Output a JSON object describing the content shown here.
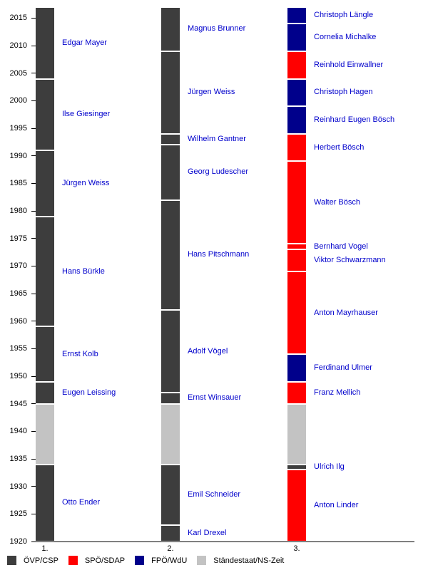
{
  "chart_data": {
    "type": "bar",
    "subtype": "vertical-timeline-succession",
    "title": "",
    "axis": {
      "year_min": 1920,
      "year_max": 2017,
      "tick_years": [
        1920,
        1925,
        1930,
        1935,
        1940,
        1945,
        1950,
        1955,
        1960,
        1965,
        1970,
        1975,
        1980,
        1985,
        1990,
        1995,
        2000,
        2005,
        2010,
        2015
      ],
      "grid": false
    },
    "colors": {
      "ÖVP/CSP": "#3d3d3d",
      "SPÖ/SDAP": "#ff0000",
      "FPÖ/WdU": "#00008b",
      "Ständestaat/NS-Zeit": "#c3c3c3",
      "name_label_text": "#0000cc",
      "axis_text": "#000000"
    },
    "legend": {
      "position": "bottom",
      "items": [
        {
          "label": "ÖVP/CSP",
          "color": "#3d3d3d"
        },
        {
          "label": "SPÖ/SDAP",
          "color": "#ff0000"
        },
        {
          "label": "FPÖ/WdU",
          "color": "#00008b"
        },
        {
          "label": "Ständestaat/NS-Zeit",
          "color": "#c3c3c3"
        }
      ]
    },
    "columns": [
      {
        "label": "1.",
        "segments": [
          {
            "name": "Otto Ender",
            "party": "ÖVP/CSP",
            "start": 1920,
            "end": 1934
          },
          {
            "name": "",
            "party": "Ständestaat/NS-Zeit",
            "start": 1934,
            "end": 1945
          },
          {
            "name": "Eugen Leissing",
            "party": "ÖVP/CSP",
            "start": 1945,
            "end": 1949
          },
          {
            "name": "Ernst Kolb",
            "party": "ÖVP/CSP",
            "start": 1949,
            "end": 1959
          },
          {
            "name": "Hans Bürkle",
            "party": "ÖVP/CSP",
            "start": 1959,
            "end": 1979
          },
          {
            "name": "Jürgen Weiss",
            "party": "ÖVP/CSP",
            "start": 1979,
            "end": 1991
          },
          {
            "name": "Ilse Giesinger",
            "party": "ÖVP/CSP",
            "start": 1991,
            "end": 2004
          },
          {
            "name": "Edgar Mayer",
            "party": "ÖVP/CSP",
            "start": 2004,
            "end": 2017
          }
        ]
      },
      {
        "label": "2.",
        "segments": [
          {
            "name": "Karl Drexel",
            "party": "ÖVP/CSP",
            "start": 1920,
            "end": 1923
          },
          {
            "name": "Emil Schneider",
            "party": "ÖVP/CSP",
            "start": 1923,
            "end": 1934
          },
          {
            "name": "",
            "party": "Ständestaat/NS-Zeit",
            "start": 1934,
            "end": 1945
          },
          {
            "name": "Ernst Winsauer",
            "party": "ÖVP/CSP",
            "start": 1945,
            "end": 1947
          },
          {
            "name": "Adolf Vögel",
            "party": "ÖVP/CSP",
            "start": 1947,
            "end": 1962
          },
          {
            "name": "Hans Pitschmann",
            "party": "ÖVP/CSP",
            "start": 1962,
            "end": 1982
          },
          {
            "name": "Georg Ludescher",
            "party": "ÖVP/CSP",
            "start": 1982,
            "end": 1992
          },
          {
            "name": "Wilhelm Gantner",
            "party": "ÖVP/CSP",
            "start": 1992,
            "end": 1994
          },
          {
            "name": "Jürgen Weiss",
            "party": "ÖVP/CSP",
            "start": 1994,
            "end": 2009
          },
          {
            "name": "Magnus Brunner",
            "party": "ÖVP/CSP",
            "start": 2009,
            "end": 2017
          }
        ]
      },
      {
        "label": "3.",
        "segments": [
          {
            "name": "Anton Linder",
            "party": "SPÖ/SDAP",
            "start": 1920,
            "end": 1933
          },
          {
            "name": "Ulrich Ilg",
            "party": "ÖVP/CSP",
            "start": 1933,
            "end": 1934
          },
          {
            "name": "",
            "party": "Ständestaat/NS-Zeit",
            "start": 1934,
            "end": 1945
          },
          {
            "name": "Franz Mellich",
            "party": "SPÖ/SDAP",
            "start": 1945,
            "end": 1949
          },
          {
            "name": "Ferdinand Ulmer",
            "party": "FPÖ/WdU",
            "start": 1949,
            "end": 1954
          },
          {
            "name": "Anton Mayrhauser",
            "party": "SPÖ/SDAP",
            "start": 1954,
            "end": 1969
          },
          {
            "name": "Viktor Schwarzmann",
            "party": "SPÖ/SDAP",
            "start": 1969,
            "end": 1973
          },
          {
            "name": "Bernhard Vogel",
            "party": "SPÖ/SDAP",
            "start": 1973,
            "end": 1974
          },
          {
            "name": "Walter Bösch",
            "party": "SPÖ/SDAP",
            "start": 1974,
            "end": 1989
          },
          {
            "name": "Herbert Bösch",
            "party": "SPÖ/SDAP",
            "start": 1989,
            "end": 1994
          },
          {
            "name": "Reinhard Eugen Bösch",
            "party": "FPÖ/WdU",
            "start": 1994,
            "end": 1999
          },
          {
            "name": "Christoph Hagen",
            "party": "FPÖ/WdU",
            "start": 1999,
            "end": 2004
          },
          {
            "name": "Reinhold Einwallner",
            "party": "SPÖ/SDAP",
            "start": 2004,
            "end": 2009
          },
          {
            "name": "Cornelia Michalke",
            "party": "FPÖ/WdU",
            "start": 2009,
            "end": 2014
          },
          {
            "name": "Christoph Längle",
            "party": "FPÖ/WdU",
            "start": 2014,
            "end": 2017
          }
        ]
      }
    ]
  }
}
